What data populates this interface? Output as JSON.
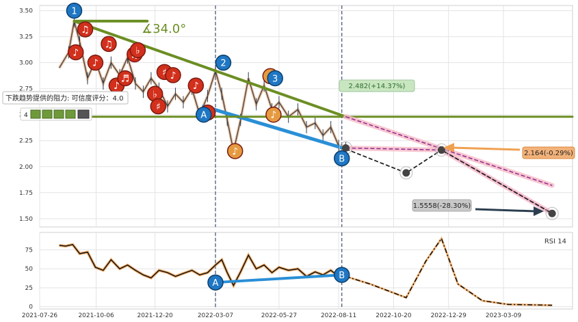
{
  "chart_data": [
    {
      "type": "line",
      "panel": "price",
      "x_ticks": [
        "2021-07-26",
        "2021-10-06",
        "2021-12-20",
        "2022-03-07",
        "2022-05-27",
        "2022-08-11",
        "2022-10-20",
        "2022-12-29",
        "2023-03-09"
      ],
      "y_ticks": [
        "3.50",
        "3.25",
        "3.00",
        "2.75",
        "2.50",
        "2.25",
        "2.00",
        "1.75",
        "1.50"
      ],
      "ylim": [
        1.42,
        3.55
      ],
      "xlim": [
        "2021-07-26",
        "2023-06-05"
      ],
      "grid": true,
      "price_series": {
        "x": [
          "2021-08-20",
          "2021-09-01",
          "2021-09-08",
          "2021-09-15",
          "2021-09-25",
          "2021-10-05",
          "2021-10-15",
          "2021-10-25",
          "2021-11-05",
          "2021-11-15",
          "2021-11-25",
          "2021-12-05",
          "2021-12-15",
          "2021-12-25",
          "2022-01-05",
          "2022-01-15",
          "2022-01-25",
          "2022-02-05",
          "2022-02-15",
          "2022-02-25",
          "2022-03-07",
          "2022-03-15",
          "2022-03-22",
          "2022-03-30",
          "2022-04-08",
          "2022-04-18",
          "2022-04-28",
          "2022-05-08",
          "2022-05-18",
          "2022-05-27",
          "2022-06-08",
          "2022-06-20",
          "2022-07-01",
          "2022-07-12",
          "2022-07-22",
          "2022-08-01",
          "2022-08-11",
          "2022-08-20"
        ],
        "values": [
          2.95,
          3.1,
          3.4,
          3.2,
          2.85,
          3.02,
          2.8,
          3.0,
          2.88,
          3.05,
          2.8,
          2.72,
          2.85,
          2.75,
          2.58,
          2.7,
          2.62,
          2.75,
          2.5,
          2.68,
          2.92,
          2.7,
          2.45,
          2.15,
          2.45,
          2.85,
          2.6,
          2.78,
          2.55,
          2.62,
          2.48,
          2.55,
          2.38,
          2.42,
          2.3,
          2.38,
          2.2,
          2.18
        ]
      },
      "trend_lines": [
        {
          "name": "resistance",
          "x": [
            "2021-09-08",
            "2022-08-20"
          ],
          "y": [
            3.4,
            2.48
          ]
        },
        {
          "name": "support",
          "x": [
            "2022-02-20",
            "2022-08-20"
          ],
          "y": [
            2.58,
            2.17
          ]
        },
        {
          "name": "horizontal",
          "x": [
            "2021-07-26",
            "2023-06-05"
          ],
          "y": [
            2.48,
            2.48
          ]
        },
        {
          "name": "angle-top",
          "x": [
            "2021-09-08",
            "2021-12-10"
          ],
          "y": [
            3.4,
            3.4
          ]
        }
      ],
      "projections": [
        {
          "name": "upper",
          "x": [
            "2022-08-20",
            "2023-05-10"
          ],
          "y": [
            2.48,
            1.82
          ]
        },
        {
          "name": "middle",
          "x": [
            "2022-08-20",
            "2022-12-20",
            "2023-05-10"
          ],
          "y": [
            2.18,
            2.16,
            1.55
          ]
        },
        {
          "name": "zigzag",
          "x": [
            "2022-08-20",
            "2022-11-05",
            "2022-12-20",
            "2023-05-10"
          ],
          "y": [
            2.17,
            1.94,
            2.16,
            1.55
          ]
        }
      ],
      "markers": [
        {
          "label": "1",
          "x": "2021-09-08",
          "y": 3.5,
          "color": "#1f77c4"
        },
        {
          "label": "2",
          "x": "2022-03-17",
          "y": 3.0,
          "color": "#1f77c4"
        },
        {
          "label": "3",
          "x": "2022-05-22",
          "y": 2.85,
          "color": "#1f77c4"
        },
        {
          "label": "A",
          "x": "2022-02-20",
          "y": 2.5,
          "color": "#1f77c4"
        },
        {
          "label": "B",
          "x": "2022-08-15",
          "y": 2.08,
          "color": "#1f77c4"
        }
      ],
      "note_markers": [
        {
          "glyph": "♪",
          "x": "2021-09-10",
          "y": 3.1,
          "color": "#d2301c"
        },
        {
          "glyph": "♫",
          "x": "2021-09-22",
          "y": 3.32,
          "color": "#d2301c"
        },
        {
          "glyph": "♪",
          "x": "2021-10-05",
          "y": 3.0,
          "color": "#d2301c"
        },
        {
          "glyph": "♫",
          "x": "2021-10-22",
          "y": 3.18,
          "color": "#d2301c"
        },
        {
          "glyph": "♪",
          "x": "2021-11-01",
          "y": 2.78,
          "color": "#d2301c"
        },
        {
          "glyph": "♬",
          "x": "2021-11-12",
          "y": 2.85,
          "color": "#d2301c"
        },
        {
          "glyph": "♫",
          "x": "2021-11-24",
          "y": 3.08,
          "color": "#d2301c"
        },
        {
          "glyph": "♭",
          "x": "2021-11-28",
          "y": 3.12,
          "color": "#d2301c"
        },
        {
          "glyph": "♭",
          "x": "2021-12-20",
          "y": 2.7,
          "color": "#d2301c"
        },
        {
          "glyph": "♯",
          "x": "2021-12-24",
          "y": 2.58,
          "color": "#d2301c"
        },
        {
          "glyph": "♯",
          "x": "2022-01-01",
          "y": 2.91,
          "color": "#d2301c"
        },
        {
          "glyph": "♪",
          "x": "2022-01-12",
          "y": 2.88,
          "color": "#d2301c"
        },
        {
          "glyph": "♪",
          "x": "2022-02-10",
          "y": 2.78,
          "color": "#d2301c"
        },
        {
          "glyph": "♫",
          "x": "2022-02-25",
          "y": 2.52,
          "color": "#d2301c"
        },
        {
          "glyph": "♪",
          "x": "2022-04-01",
          "y": 2.15,
          "color": "#e69a40"
        },
        {
          "glyph": "♪",
          "x": "2022-05-16",
          "y": 2.87,
          "color": "#e69a40"
        },
        {
          "glyph": "♪",
          "x": "2022-05-20",
          "y": 2.5,
          "color": "#e69a40"
        }
      ],
      "circles": [
        {
          "x": "2022-08-20",
          "y": 2.18
        },
        {
          "x": "2022-11-05",
          "y": 1.94
        },
        {
          "x": "2022-12-20",
          "y": 2.16
        },
        {
          "x": "2023-05-10",
          "y": 1.55
        }
      ],
      "annotations": [
        {
          "text": "∡34.0°",
          "color": "#6b8e23",
          "kind": "angle"
        },
        {
          "text": "2.482(+14.37%)",
          "color": "#2e6b2e",
          "bg": "#c8e6c0",
          "kind": "upper"
        },
        {
          "text": "2.164(-0.29%)",
          "color": "#222",
          "bg": "#f2b27a",
          "kind": "middle"
        },
        {
          "text": "1.5558(-28.30%)",
          "color": "#222",
          "bg": "#c8c8c8",
          "kind": "lower"
        },
        {
          "text": "下跌趋势提供的阻力: 可信度评分：4.0",
          "color": "#222",
          "bg": "#ffffff",
          "kind": "tooltip"
        },
        {
          "text": "4",
          "color": "#222",
          "kind": "badge-count"
        }
      ],
      "vlines": [
        "2022-03-07",
        "2022-08-15"
      ]
    },
    {
      "type": "line",
      "panel": "rsi",
      "legend": "RSI 14",
      "y_ticks": [
        "75",
        "50",
        "25",
        "0"
      ],
      "ylim": [
        -3,
        98
      ],
      "grid": true,
      "rsi_series": {
        "x": [
          "2021-08-20",
          "2021-08-28",
          "2021-09-06",
          "2021-09-15",
          "2021-09-25",
          "2021-10-05",
          "2021-10-15",
          "2021-10-25",
          "2021-11-05",
          "2021-11-15",
          "2021-11-25",
          "2021-12-05",
          "2021-12-15",
          "2021-12-25",
          "2022-01-05",
          "2022-01-15",
          "2022-01-25",
          "2022-02-05",
          "2022-02-15",
          "2022-02-25",
          "2022-03-07",
          "2022-03-15",
          "2022-03-22",
          "2022-03-30",
          "2022-04-08",
          "2022-04-18",
          "2022-04-28",
          "2022-05-08",
          "2022-05-18",
          "2022-05-27",
          "2022-06-08",
          "2022-06-20",
          "2022-07-01",
          "2022-07-12",
          "2022-07-22",
          "2022-08-01",
          "2022-08-11",
          "2022-08-20"
        ],
        "values": [
          81,
          80,
          82,
          70,
          72,
          52,
          48,
          62,
          50,
          55,
          48,
          42,
          38,
          48,
          45,
          40,
          44,
          48,
          42,
          45,
          55,
          62,
          45,
          28,
          46,
          68,
          50,
          55,
          45,
          52,
          48,
          50,
          40,
          46,
          42,
          48,
          40,
          44
        ]
      },
      "rsi_projection": {
        "x": [
          "2022-08-20",
          "2022-09-20",
          "2022-11-05",
          "2022-11-30",
          "2022-12-20",
          "2023-01-10",
          "2023-02-10",
          "2023-03-15",
          "2023-05-10"
        ],
        "values": [
          40,
          30,
          12,
          60,
          90,
          30,
          8,
          3,
          2
        ]
      },
      "support_line": {
        "x": [
          "2022-03-07",
          "2022-08-15"
        ],
        "y": [
          32,
          42
        ]
      },
      "markers": [
        {
          "label": "A",
          "x": "2022-03-07",
          "y": 32,
          "color": "#1f77c4"
        },
        {
          "label": "B",
          "x": "2022-08-15",
          "y": 42,
          "color": "#1f77c4"
        }
      ]
    }
  ]
}
